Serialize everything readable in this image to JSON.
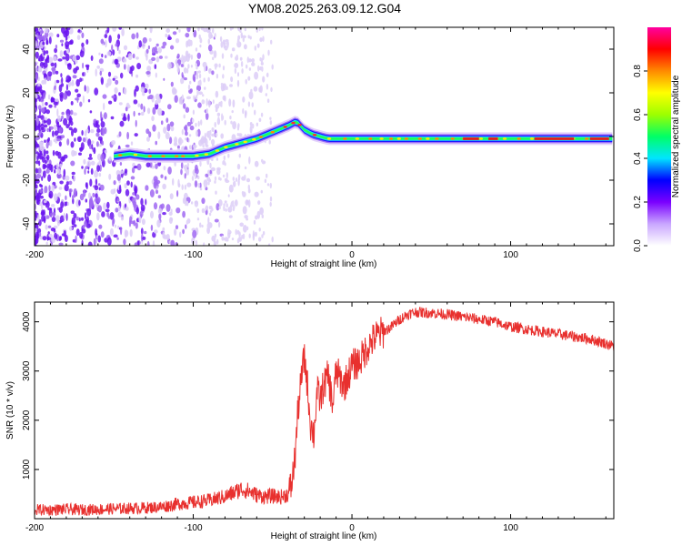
{
  "figure": {
    "title": "YM08.2025.263.09.12.G04"
  },
  "colors": {
    "line": "#e8302e",
    "axis": "#000000",
    "scatter": "#7a2be0",
    "scatter_light": "#d9c9f5"
  },
  "chart_data": [
    {
      "type": "heatmap",
      "name": "spectrogram",
      "title": "",
      "xlabel": "Height of straight line (km)",
      "ylabel": "Frequency (Hz)",
      "xlim": [
        -200,
        165
      ],
      "ylim": [
        -50,
        50
      ],
      "xticks": [
        -200,
        -100,
        0,
        100
      ],
      "yticks": [
        -40,
        -20,
        0,
        20,
        40
      ],
      "ridge": {
        "x": [
          -150,
          -140,
          -130,
          -120,
          -110,
          -100,
          -90,
          -80,
          -70,
          -60,
          -50,
          -40,
          -35,
          -30,
          -25,
          -20,
          -15,
          -10,
          -5,
          0,
          10,
          20,
          40,
          60,
          80,
          100,
          120,
          140,
          165
        ],
        "freq_hz": [
          -9,
          -8,
          -9,
          -9,
          -9,
          -9,
          -8,
          -5,
          -3,
          -1,
          2,
          5,
          7,
          3,
          1,
          0,
          -1,
          -1,
          -1,
          -1,
          -1,
          -1,
          -1,
          -1,
          -1,
          -1,
          -1,
          -1,
          -1
        ]
      },
      "colorbar": {
        "label": "Normalized spectral amplitude",
        "ticks": [
          0.0,
          0.2,
          0.4,
          0.6,
          0.8
        ],
        "tick_labels": [
          "0.0",
          "0.2",
          "0.4",
          "0.6",
          "0.8"
        ],
        "range": [
          0,
          1
        ],
        "colormap": [
          "#ffffff",
          "#c9a6ff",
          "#7a00ff",
          "#0000ff",
          "#00e5ff",
          "#00ff66",
          "#9dff00",
          "#ffff00",
          "#ff8a00",
          "#ff0000",
          "#ff00a0"
        ]
      }
    },
    {
      "type": "line",
      "name": "snr",
      "title": "",
      "xlabel": "Height of straight line (km)",
      "ylabel": "SNR (10 * v/v)",
      "xlim": [
        -200,
        165
      ],
      "ylim": [
        0,
        4400
      ],
      "xticks": [
        -200,
        -100,
        0,
        100
      ],
      "yticks": [
        1000,
        2000,
        3000,
        4000
      ],
      "series": [
        {
          "name": "SNR",
          "x": [
            -200,
            -190,
            -180,
            -170,
            -160,
            -150,
            -140,
            -130,
            -120,
            -110,
            -100,
            -90,
            -80,
            -75,
            -70,
            -65,
            -60,
            -55,
            -50,
            -45,
            -40,
            -38,
            -36,
            -34,
            -32,
            -30,
            -28,
            -26,
            -24,
            -22,
            -20,
            -18,
            -15,
            -12,
            -10,
            -5,
            0,
            5,
            10,
            15,
            20,
            25,
            30,
            35,
            40,
            50,
            60,
            70,
            80,
            90,
            100,
            110,
            120,
            130,
            140,
            150,
            160,
            165
          ],
          "y": [
            180,
            180,
            190,
            180,
            190,
            200,
            210,
            220,
            240,
            300,
            330,
            370,
            450,
            520,
            600,
            560,
            480,
            450,
            460,
            440,
            500,
            700,
            1200,
            2200,
            2800,
            3300,
            2700,
            1900,
            1700,
            2600,
            2400,
            2700,
            2900,
            2300,
            3000,
            2700,
            3100,
            3200,
            3500,
            3700,
            3800,
            3900,
            4050,
            4150,
            4200,
            4180,
            4150,
            4100,
            4050,
            4000,
            3900,
            3850,
            3800,
            3750,
            3700,
            3650,
            3560,
            3500
          ]
        }
      ]
    }
  ]
}
